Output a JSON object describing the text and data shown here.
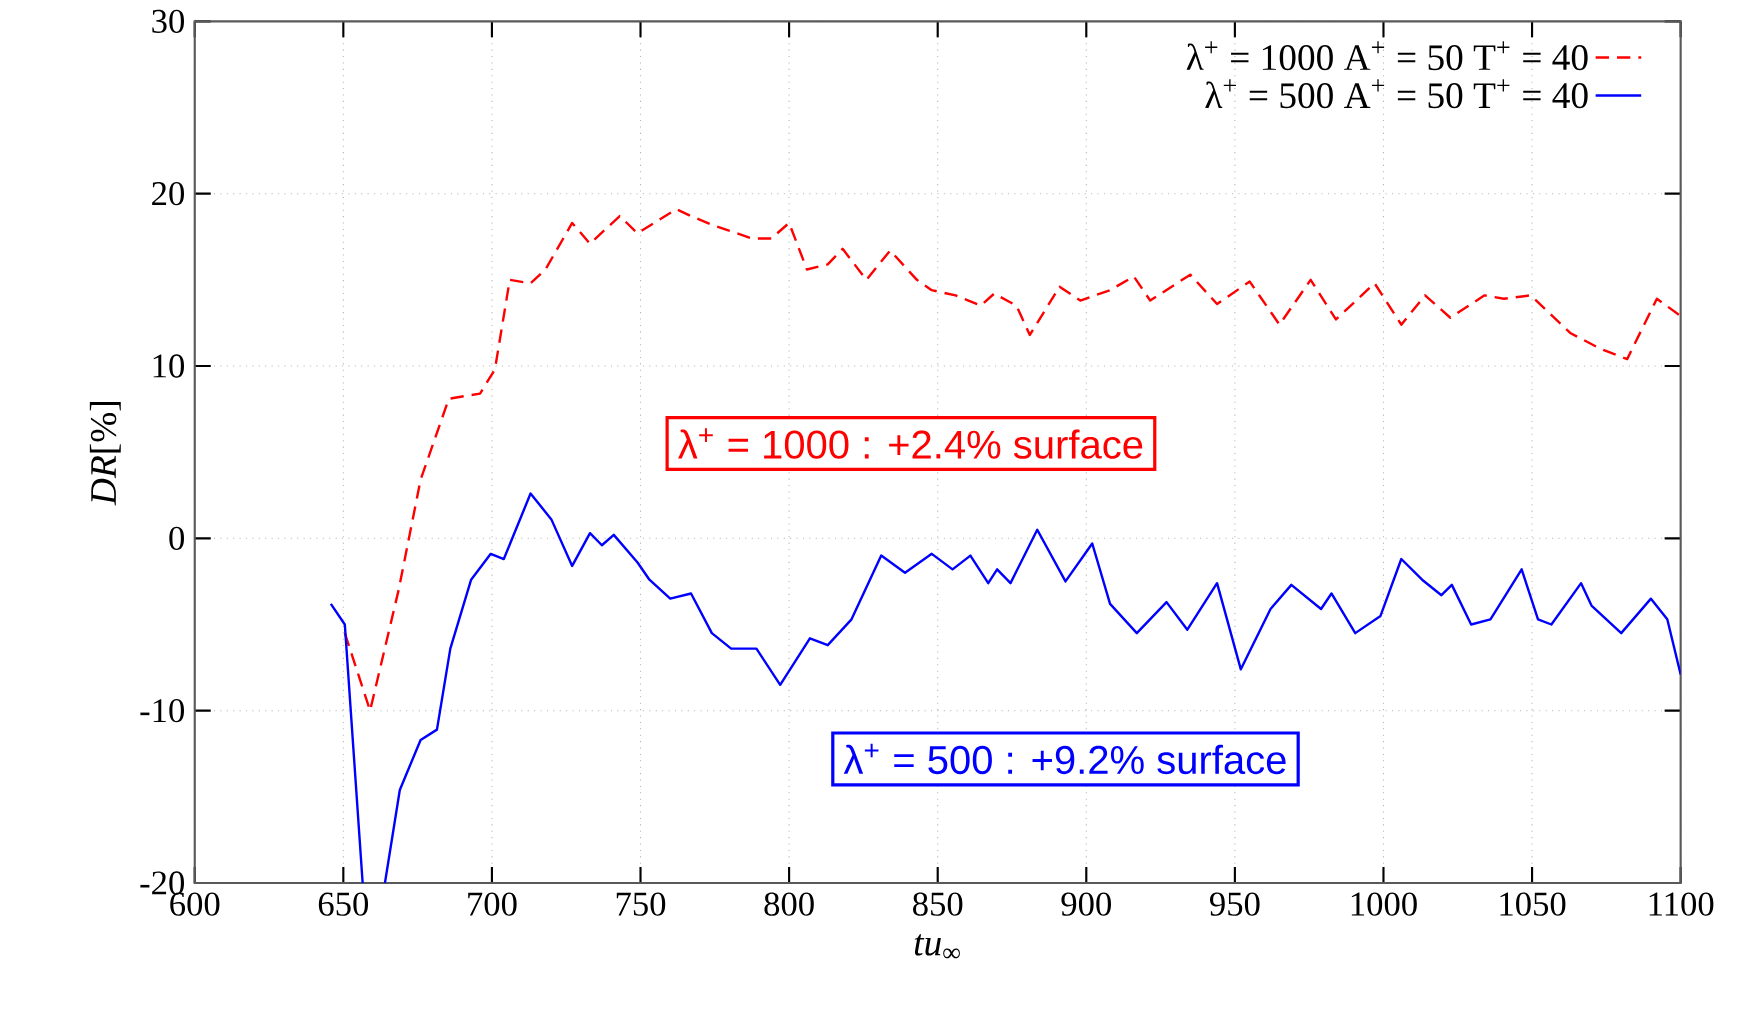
{
  "chart_data": {
    "type": "line",
    "xlabel": "*tu*$_{∞}$",
    "ylabel": "*DR*[%]",
    "xlim": [
      600,
      1100
    ],
    "ylim": [
      -20,
      30
    ],
    "xticks": [
      600,
      650,
      700,
      750,
      800,
      850,
      900,
      950,
      1000,
      1050,
      1100
    ],
    "yticks": [
      -20,
      -10,
      0,
      10,
      20,
      30
    ],
    "grid": true,
    "legend": "top right",
    "annotations": [
      "λ$^{+}$ = 1000 : +2.4% surface",
      "λ$^{+}$ = 500 : +9.2% surface"
    ],
    "series": [
      {
        "name": "λ$^{+}$ = 1000    A$^{+}$ = 50    T$^{+}$ = 40",
        "color": "#ff0000",
        "line_style": "dashed",
        "x": [
          650.5,
          659,
          668.6,
          676,
          685.5,
          696,
          701,
          706,
          713,
          718,
          727,
          733,
          743,
          749,
          762,
          767,
          774,
          787.5,
          794,
          800,
          806,
          813,
          818,
          826,
          834,
          843,
          848,
          856,
          864.5,
          869,
          876.5,
          881,
          891,
          898,
          908,
          916,
          921.5,
          935,
          944,
          955,
          965,
          975.5,
          984,
          997,
          1006,
          1014,
          1022.5,
          1034,
          1040.5,
          1049.5,
          1063,
          1073,
          1082,
          1092,
          1100
        ],
        "values": [
          -5.5,
          -10,
          -3,
          3.4,
          8.1,
          8.4,
          9.8,
          15,
          14.8,
          15.6,
          18.3,
          17.1,
          18.7,
          17.7,
          19.1,
          18.7,
          18.2,
          17.4,
          17.4,
          18.3,
          15.6,
          15.9,
          16.8,
          15,
          16.7,
          15,
          14.4,
          14.1,
          13.5,
          14.2,
          13.5,
          11.8,
          14.6,
          13.8,
          14.4,
          15.2,
          13.8,
          15.3,
          13.6,
          14.9,
          12.4,
          15,
          12.7,
          14.8,
          12.4,
          14.1,
          12.8,
          14.1,
          13.9,
          14.1,
          11.9,
          11,
          10.4,
          13.9,
          12.9
        ]
      },
      {
        "name": "λ$^{+}$ = 500    A$^{+}$ = 50    T$^{+}$ = 40",
        "color": "#0000ff",
        "line_style": "solid",
        "x": [
          645.8,
          650.5,
          656.5,
          660,
          664,
          669,
          676,
          681.5,
          686,
          693,
          699.6,
          704,
          713,
          720,
          727,
          733,
          737,
          741,
          749,
          753,
          760,
          767,
          774,
          780.5,
          789,
          797,
          807,
          813,
          821,
          831,
          839,
          848,
          855,
          861,
          867,
          870,
          874.5,
          883.5,
          893,
          902,
          908,
          917,
          927,
          934,
          944,
          952,
          962,
          969,
          979,
          982.5,
          990.5,
          999,
          1006,
          1013,
          1019.5,
          1023,
          1029.5,
          1036,
          1046.5,
          1052,
          1056.5,
          1066.5,
          1070,
          1080,
          1090,
          1095.5,
          1100
        ],
        "values": [
          -3.8,
          -5,
          -20,
          null,
          -20,
          -14.6,
          -11.7,
          -11.1,
          -6.4,
          -2.4,
          -0.9,
          -1.2,
          2.6,
          1.1,
          -1.6,
          0.3,
          -0.4,
          0.2,
          -1.4,
          -2.4,
          -3.5,
          -3.2,
          -5.5,
          -6.4,
          -6.4,
          -8.5,
          -5.8,
          -6.2,
          -4.7,
          -1,
          -2,
          -0.9,
          -1.8,
          -1,
          -2.6,
          -1.8,
          -2.6,
          0.5,
          -2.5,
          -0.3,
          -3.8,
          -5.5,
          -3.7,
          -5.3,
          -2.6,
          -7.6,
          -4.1,
          -2.7,
          -4.1,
          -3.2,
          -5.5,
          -4.5,
          -1.2,
          -2.4,
          -3.3,
          -2.7,
          -5,
          -4.7,
          -1.8,
          -4.7,
          -5,
          -2.6,
          -3.9,
          -5.5,
          -3.5,
          -4.7,
          -7.9
        ]
      }
    ]
  }
}
